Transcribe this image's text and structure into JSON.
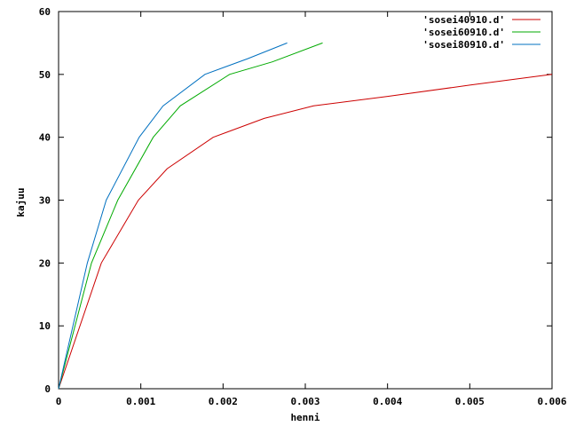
{
  "chart_data": {
    "type": "line",
    "xlabel": "henni",
    "ylabel": "kajuu",
    "xlim": [
      0,
      0.006
    ],
    "ylim": [
      0,
      60
    ],
    "xticks": [
      0,
      0.001,
      0.002,
      0.003,
      0.004,
      0.005,
      0.006
    ],
    "xtick_labels": [
      "0",
      "0.001",
      "0.002",
      "0.003",
      "0.004",
      "0.005",
      "0.006"
    ],
    "yticks": [
      0,
      10,
      20,
      30,
      40,
      50,
      60
    ],
    "ytick_labels": [
      "0",
      "10",
      "20",
      "30",
      "40",
      "50",
      "60"
    ],
    "grid": false,
    "legend_position": "top-right",
    "series": [
      {
        "name": "'sosei40910.d'",
        "color": "#cc0000",
        "x": [
          0,
          0.00052,
          0.00097,
          0.00132,
          0.00188,
          0.0025,
          0.0031,
          0.004,
          0.005,
          0.006
        ],
        "y": [
          0,
          20,
          30,
          35,
          40,
          43,
          45,
          46.5,
          48.3,
          50
        ]
      },
      {
        "name": "'sosei60910.d'",
        "color": "#00aa00",
        "x": [
          0,
          0.0004,
          0.00072,
          0.00115,
          0.00148,
          0.00208,
          0.0026,
          0.00321
        ],
        "y": [
          0,
          20,
          30,
          40,
          45,
          50,
          52,
          55
        ]
      },
      {
        "name": "'sosei80910.d'",
        "color": "#0070c0",
        "x": [
          0,
          0.00035,
          0.00058,
          0.00098,
          0.00127,
          0.00178,
          0.0023,
          0.00278
        ],
        "y": [
          0,
          20,
          30,
          40,
          45,
          50,
          52.5,
          55
        ]
      }
    ]
  }
}
